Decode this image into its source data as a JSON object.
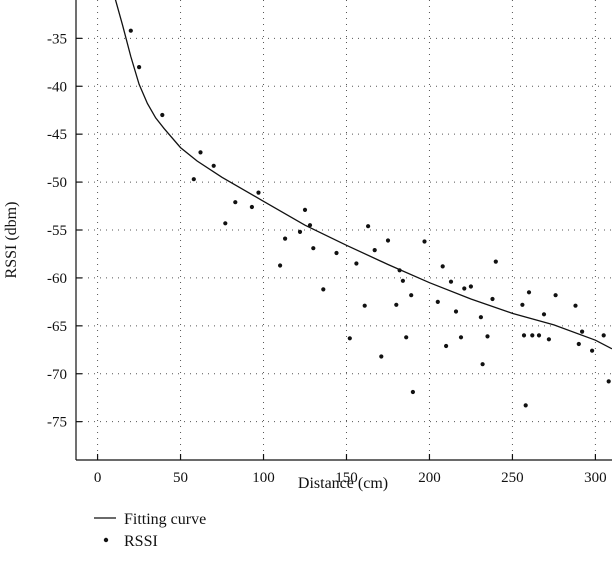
{
  "chart_data": {
    "type": "scatter",
    "title": "",
    "xlabel": "Distance (cm)",
    "ylabel": "RSSI (dbm)",
    "xlim": [
      -13,
      310
    ],
    "ylim": [
      -79,
      -31
    ],
    "x_ticks": [
      0,
      50,
      100,
      150,
      200,
      250,
      300
    ],
    "x_tick_labels": [
      "0",
      "50",
      "100",
      "150",
      "200",
      "250",
      "300"
    ],
    "y_ticks": [
      -35,
      -40,
      -45,
      -50,
      -55,
      -60,
      -65,
      -70,
      -75
    ],
    "y_tick_labels": [
      "-35",
      "-40",
      "-45",
      "-50",
      "-55",
      "-60",
      "-65",
      "-70",
      "-75"
    ],
    "grid": true,
    "legend_placement": "bottom-left",
    "series": [
      {
        "name": "Fitting curve",
        "kind": "line",
        "color": "#111111",
        "x": [
          10,
          15,
          20,
          25,
          30,
          35,
          40,
          50,
          60,
          75,
          100,
          125,
          150,
          175,
          200,
          225,
          250,
          275,
          300,
          310
        ],
        "y": [
          -30.5,
          -33.6,
          -36.9,
          -39.8,
          -41.8,
          -43.3,
          -44.4,
          -46.4,
          -47.8,
          -49.5,
          -52.0,
          -54.5,
          -56.6,
          -58.6,
          -60.5,
          -62.2,
          -63.7,
          -64.9,
          -66.5,
          -67.4
        ]
      },
      {
        "name": "RSSI",
        "kind": "scatter",
        "color": "#111111",
        "x": [
          20,
          25,
          39,
          58,
          62,
          70,
          77,
          83,
          93,
          97,
          110,
          113,
          122,
          125,
          128,
          130,
          136,
          144,
          152,
          156,
          161,
          163,
          167,
          171,
          175,
          180,
          182,
          184,
          186,
          189,
          190,
          197,
          205,
          208,
          210,
          213,
          216,
          219,
          221,
          225,
          231,
          232,
          235,
          238,
          240,
          256,
          257,
          258,
          260,
          262,
          266,
          269,
          272,
          276,
          288,
          290,
          292,
          298,
          305,
          308
        ],
        "y": [
          -34.2,
          -38.0,
          -43.0,
          -49.7,
          -46.9,
          -48.3,
          -54.3,
          -52.1,
          -52.6,
          -51.1,
          -58.7,
          -55.9,
          -55.2,
          -52.9,
          -54.5,
          -56.9,
          -61.2,
          -57.4,
          -66.3,
          -58.5,
          -62.9,
          -54.6,
          -57.1,
          -68.2,
          -56.1,
          -62.8,
          -59.2,
          -60.3,
          -66.2,
          -61.8,
          -71.9,
          -56.2,
          -62.5,
          -58.8,
          -67.1,
          -60.4,
          -63.5,
          -66.2,
          -61.1,
          -60.9,
          -64.1,
          -69.0,
          -66.1,
          -62.2,
          -58.3,
          -62.8,
          -66.0,
          -73.3,
          -61.5,
          -66.0,
          -66.0,
          -63.8,
          -66.4,
          -61.8,
          -62.9,
          -66.9,
          -65.6,
          -67.6,
          -66.0,
          -70.8
        ]
      }
    ]
  },
  "legend": {
    "items": [
      {
        "label": "Fitting curve",
        "symbol": "line"
      },
      {
        "label": "RSSI",
        "symbol": "dot"
      }
    ]
  }
}
